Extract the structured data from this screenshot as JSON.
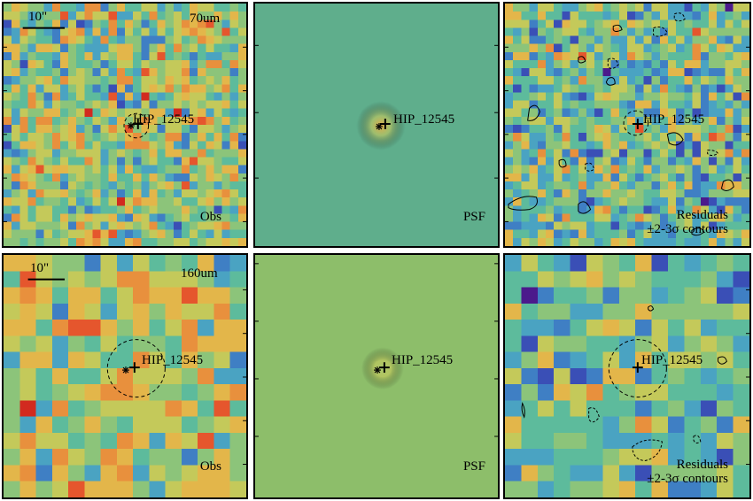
{
  "target": {
    "name": "HIP_12545"
  },
  "scale_bar": {
    "label": "10\""
  },
  "rows": [
    {
      "band": "70um",
      "panels": [
        {
          "kind": "obs",
          "corner_label": "Obs"
        },
        {
          "kind": "psf",
          "corner_label": "PSF"
        },
        {
          "kind": "residual",
          "corner_label_line1": "Residuals",
          "corner_label_line2": "±2-3σ contours"
        }
      ]
    },
    {
      "band": "160um",
      "panels": [
        {
          "kind": "obs",
          "corner_label": "Obs"
        },
        {
          "kind": "psf",
          "corner_label": "PSF"
        },
        {
          "kind": "residual",
          "corner_label_line1": "Residuals",
          "corner_label_line2": "±2-3σ contours"
        }
      ]
    }
  ],
  "colors": {
    "psf_70_bg": "#5fae8c",
    "psf_160_bg": "#8dbe6a",
    "frame": "#000000"
  }
}
